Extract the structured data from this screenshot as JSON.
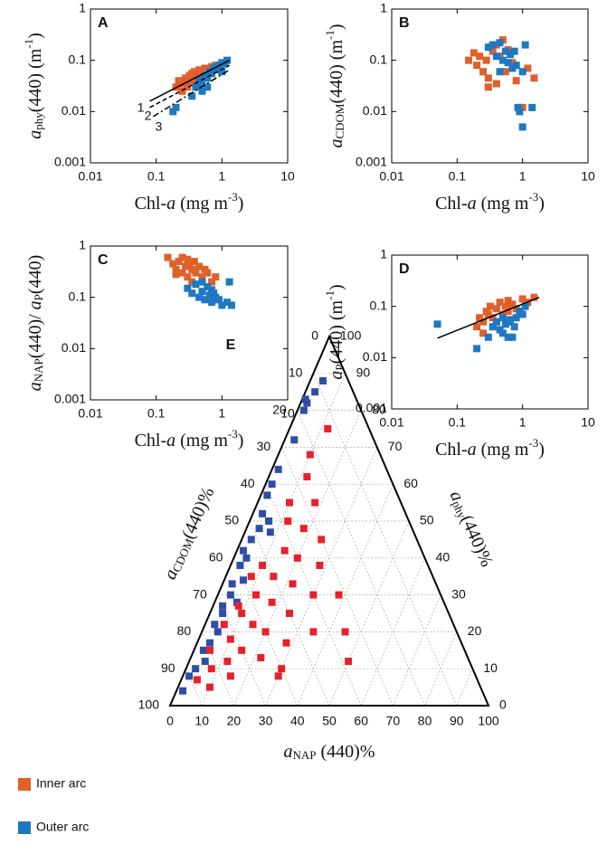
{
  "chart_data": [
    {
      "type": "scatter",
      "title": "A",
      "log": true,
      "xlim": [
        0.01,
        10
      ],
      "ylim": [
        0.001,
        1
      ],
      "xticks": [
        0.01,
        0.1,
        1,
        10
      ],
      "yticks": [
        0.001,
        0.01,
        0.1,
        1
      ],
      "xlabel": [
        "Chl-",
        "a",
        " (mg m",
        "-3",
        ")"
      ],
      "ylabel": [
        "a",
        "phy",
        "(440) (m",
        "-1",
        ")"
      ],
      "series": [
        {
          "color": "#e0602a",
          "x": [
            0.2,
            0.22,
            0.25,
            0.28,
            0.3,
            0.32,
            0.35,
            0.38,
            0.4,
            0.42,
            0.45,
            0.5,
            0.55,
            0.6,
            0.7,
            0.8,
            0.25,
            0.3,
            0.35,
            0.45
          ],
          "values": [
            0.03,
            0.04,
            0.035,
            0.045,
            0.03,
            0.05,
            0.04,
            0.06,
            0.05,
            0.045,
            0.06,
            0.055,
            0.07,
            0.06,
            0.075,
            0.08,
            0.025,
            0.038,
            0.055,
            0.065
          ]
        },
        {
          "color": "#1f78c1",
          "x": [
            0.18,
            0.2,
            0.35,
            0.4,
            0.45,
            0.5,
            0.55,
            0.6,
            0.65,
            0.7,
            0.75,
            0.8,
            0.9,
            1.0,
            1.1,
            1.2,
            0.5,
            0.6,
            0.85,
            1.0
          ],
          "values": [
            0.01,
            0.012,
            0.02,
            0.03,
            0.04,
            0.035,
            0.05,
            0.045,
            0.06,
            0.055,
            0.07,
            0.065,
            0.08,
            0.09,
            0.085,
            0.1,
            0.025,
            0.03,
            0.075,
            0.06
          ]
        }
      ],
      "lines": [
        {
          "name": "1",
          "style": "solid",
          "x": [
            0.08,
            1.3
          ],
          "values": [
            0.016,
            0.1
          ]
        },
        {
          "name": "2",
          "style": "dashed",
          "x": [
            0.08,
            1.3
          ],
          "values": [
            0.012,
            0.08
          ]
        },
        {
          "name": "3",
          "style": "dashdot",
          "x": [
            0.09,
            1.3
          ],
          "values": [
            0.008,
            0.065
          ]
        }
      ]
    },
    {
      "type": "scatter",
      "title": "B",
      "log": true,
      "xlim": [
        0.01,
        10
      ],
      "ylim": [
        0.001,
        1
      ],
      "xticks": [
        0.01,
        0.1,
        1,
        10
      ],
      "yticks": [
        0.001,
        0.01,
        0.1,
        1
      ],
      "xlabel": [
        "Chl-",
        "a",
        " (mg m",
        "-3",
        ")"
      ],
      "ylabel": [
        "a",
        "CDOM",
        "(440) (m",
        "-1",
        ")"
      ],
      "series": [
        {
          "color": "#e0602a",
          "x": [
            0.15,
            0.18,
            0.2,
            0.22,
            0.25,
            0.28,
            0.3,
            0.32,
            0.35,
            0.4,
            0.45,
            0.5,
            0.55,
            0.6,
            0.7,
            0.8,
            1.0,
            1.2,
            1.5,
            0.3,
            0.4
          ],
          "values": [
            0.1,
            0.14,
            0.08,
            0.12,
            0.06,
            0.1,
            0.045,
            0.18,
            0.15,
            0.2,
            0.12,
            0.25,
            0.06,
            0.16,
            0.09,
            0.04,
            0.012,
            0.07,
            0.045,
            0.03,
            0.035
          ]
        },
        {
          "color": "#1f78c1",
          "x": [
            0.3,
            0.35,
            0.4,
            0.45,
            0.5,
            0.55,
            0.6,
            0.65,
            0.7,
            0.8,
            0.85,
            0.9,
            1.0,
            1.0,
            1.1,
            1.4,
            0.45,
            0.75
          ],
          "values": [
            0.18,
            0.2,
            0.12,
            0.22,
            0.1,
            0.15,
            0.09,
            0.13,
            0.07,
            0.08,
            0.012,
            0.01,
            0.005,
            0.06,
            0.2,
            0.012,
            0.06,
            0.15
          ]
        }
      ]
    },
    {
      "type": "scatter",
      "title": "C",
      "log": true,
      "xlim": [
        0.01,
        10
      ],
      "ylim": [
        0.001,
        1
      ],
      "xticks": [
        0.01,
        0.1,
        1,
        10
      ],
      "yticks": [
        0.001,
        0.01,
        0.1,
        1
      ],
      "xlabel": [
        "Chl-",
        "a",
        " (mg m",
        "-3",
        ")"
      ],
      "ylabel": [
        "a",
        "NAP",
        "(440)/ ",
        "a",
        "P",
        "(440)"
      ],
      "series": [
        {
          "color": "#e0602a",
          "x": [
            0.15,
            0.18,
            0.2,
            0.22,
            0.25,
            0.25,
            0.28,
            0.3,
            0.3,
            0.32,
            0.35,
            0.38,
            0.4,
            0.45,
            0.5,
            0.55,
            0.6,
            0.7,
            0.8,
            0.2,
            0.35
          ],
          "values": [
            0.6,
            0.45,
            0.35,
            0.5,
            0.6,
            0.3,
            0.4,
            0.55,
            0.25,
            0.45,
            0.35,
            0.5,
            0.3,
            0.4,
            0.25,
            0.35,
            0.3,
            0.2,
            0.25,
            0.28,
            0.2
          ]
        },
        {
          "color": "#1f78c1",
          "x": [
            0.3,
            0.35,
            0.4,
            0.45,
            0.5,
            0.55,
            0.6,
            0.65,
            0.7,
            0.75,
            0.8,
            0.9,
            1.0,
            1.2,
            1.4,
            0.5,
            0.7,
            1.3
          ],
          "values": [
            0.15,
            0.12,
            0.18,
            0.1,
            0.13,
            0.09,
            0.16,
            0.11,
            0.08,
            0.12,
            0.1,
            0.09,
            0.07,
            0.08,
            0.07,
            0.2,
            0.14,
            0.2
          ]
        }
      ]
    },
    {
      "type": "scatter",
      "title": "D",
      "log": true,
      "xlim": [
        0.01,
        10
      ],
      "ylim": [
        0.001,
        1
      ],
      "xticks": [
        0.01,
        0.1,
        1,
        10
      ],
      "yticks": [
        0.001,
        0.01,
        0.1,
        1
      ],
      "xlabel": [
        "Chl-",
        "a",
        " (mg m",
        "-3",
        ")"
      ],
      "ylabel": [
        "a",
        "P",
        "(440) (m",
        "-1",
        ")"
      ],
      "series": [
        {
          "color": "#e0602a",
          "x": [
            0.2,
            0.22,
            0.25,
            0.28,
            0.3,
            0.32,
            0.35,
            0.4,
            0.45,
            0.5,
            0.55,
            0.6,
            0.7,
            0.8,
            1.0,
            1.2,
            1.5,
            0.25,
            0.4,
            0.6
          ],
          "values": [
            0.04,
            0.06,
            0.05,
            0.08,
            0.07,
            0.1,
            0.06,
            0.09,
            0.12,
            0.07,
            0.1,
            0.13,
            0.11,
            0.09,
            0.14,
            0.12,
            0.15,
            0.03,
            0.05,
            0.08
          ]
        },
        {
          "color": "#1f78c1",
          "x": [
            0.05,
            0.2,
            0.3,
            0.35,
            0.4,
            0.45,
            0.5,
            0.55,
            0.6,
            0.65,
            0.7,
            0.8,
            0.9,
            1.0,
            1.1,
            0.5,
            0.6,
            0.75
          ],
          "values": [
            0.045,
            0.015,
            0.025,
            0.04,
            0.05,
            0.035,
            0.06,
            0.045,
            0.025,
            0.055,
            0.025,
            0.06,
            0.08,
            0.07,
            0.1,
            0.03,
            0.05,
            0.04
          ]
        }
      ],
      "lines": [
        {
          "style": "solid",
          "x": [
            0.05,
            1.8
          ],
          "values": [
            0.024,
            0.15
          ]
        }
      ]
    },
    {
      "type": "ternary",
      "title": "E",
      "ticks": [
        0,
        10,
        20,
        30,
        40,
        50,
        60,
        70,
        80,
        90,
        100
      ],
      "left_label": [
        "a",
        "CDOM",
        "(440)%"
      ],
      "right_label": [
        "a",
        "phy",
        "(440)%"
      ],
      "bottom_label": [
        "a",
        "NAP",
        " (440)%"
      ],
      "series": [
        {
          "color": "#2e4ea6",
          "x": [
            4,
            3,
            2,
            1,
            2,
            3,
            2,
            2,
            2,
            3,
            6,
            4,
            8,
            3,
            2,
            4,
            3,
            3,
            4,
            3,
            4,
            3,
            5,
            4,
            3,
            5,
            3,
            2,
            2,
            7,
            6
          ],
          "values": [
            88,
            85,
            82,
            83,
            80,
            72,
            64,
            60,
            57,
            52,
            50,
            48,
            47,
            45,
            42,
            40,
            38,
            33,
            30,
            27,
            25,
            22,
            20,
            17,
            15,
            12,
            10,
            8,
            4,
            28,
            34
          ]
        },
        {
          "color": "#e8202a",
          "x": [
            12,
            10,
            12,
            10,
            18,
            12,
            18,
            25,
            15,
            20,
            28,
            10,
            15,
            22,
            12,
            30,
            18,
            8,
            25,
            10,
            15,
            20,
            35,
            10,
            28,
            15,
            5,
            22,
            12,
            8,
            30,
            15,
            5,
            10,
            38,
            45,
            50,
            30,
            8,
            6
          ],
          "values": [
            75,
            68,
            62,
            55,
            55,
            50,
            48,
            45,
            42,
            40,
            38,
            38,
            35,
            33,
            30,
            30,
            28,
            27,
            25,
            25,
            22,
            20,
            20,
            18,
            17,
            15,
            15,
            13,
            12,
            10,
            10,
            8,
            7,
            5,
            30,
            20,
            12,
            8,
            35,
            22
          ]
        }
      ]
    }
  ],
  "legend": [
    {
      "name": "Inner arc",
      "color": "#e0602a"
    },
    {
      "name": "Outer arc",
      "color": "#1f78c1"
    }
  ]
}
